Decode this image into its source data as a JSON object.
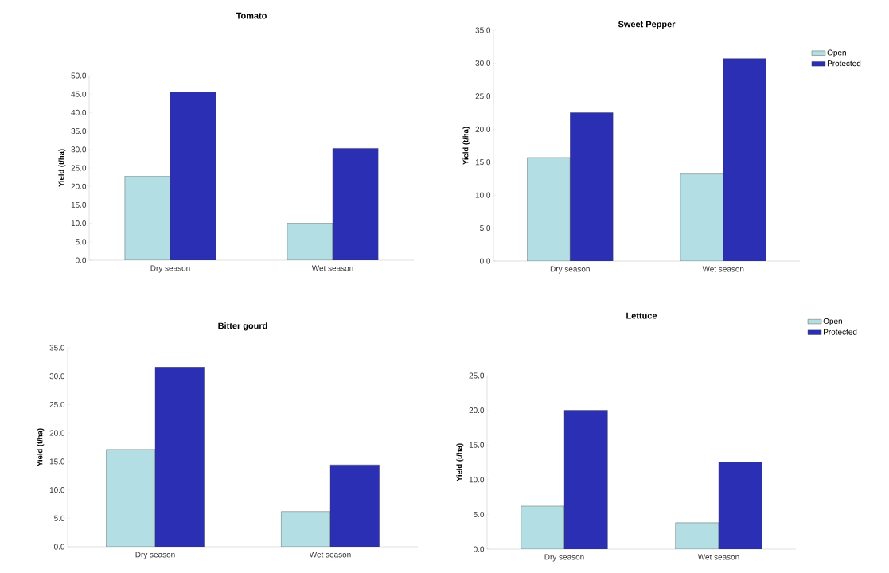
{
  "chart_data": [
    {
      "type": "bar",
      "title": "Tomato",
      "ylabel": "Yield (t/ha)",
      "categories": [
        "Dry season",
        "Wet season"
      ],
      "series": [
        {
          "color": "#b3dfe4",
          "values": [
            22.8,
            10.0
          ]
        },
        {
          "color": "#2b2fb3",
          "values": [
            45.5,
            30.3
          ]
        }
      ],
      "ylim": [
        0,
        50
      ],
      "yticks": [
        {
          "value": 0,
          "label": "0.0"
        },
        {
          "value": 5,
          "label": "5.0"
        },
        {
          "value": 10,
          "label": "10.0"
        },
        {
          "value": 15,
          "label": "15.0"
        },
        {
          "value": 20,
          "label": "20.0"
        },
        {
          "value": 25,
          "label": "25.0"
        },
        {
          "value": 30,
          "label": "30.0"
        },
        {
          "value": 35,
          "label": "35.0"
        },
        {
          "value": 40,
          "label": "40.0"
        },
        {
          "value": 45,
          "label": "45.0"
        },
        {
          "value": 50,
          "label": "50.0"
        }
      ]
    },
    {
      "type": "bar",
      "title": "Sweet Pepper",
      "ylabel": "Yield (t/ha)",
      "categories": [
        "Dry season",
        "Wet season"
      ],
      "series": [
        {
          "name": "Open",
          "color": "#b3dfe4",
          "values": [
            15.7,
            13.2
          ]
        },
        {
          "name": "Protected",
          "color": "#2b2fb3",
          "values": [
            22.5,
            30.7
          ]
        }
      ],
      "ylim": [
        0,
        35
      ],
      "yticks": [
        {
          "value": 0,
          "label": "0.0"
        },
        {
          "value": 5,
          "label": "5.0"
        },
        {
          "value": 10,
          "label": "10.0"
        },
        {
          "value": 15,
          "label": "15.0"
        },
        {
          "value": 20,
          "label": "20.0"
        },
        {
          "value": 25,
          "label": "25.0"
        },
        {
          "value": 30,
          "label": "30.0"
        },
        {
          "value": 35,
          "label": "35.0"
        }
      ],
      "legend": "right"
    },
    {
      "type": "bar",
      "title": "Bitter gourd",
      "ylabel": "Yield (t/ha)",
      "categories": [
        "Dry season",
        "Wet season"
      ],
      "series": [
        {
          "color": "#b3dfe4",
          "values": [
            17.1,
            6.2
          ]
        },
        {
          "color": "#2b2fb3",
          "values": [
            31.6,
            14.4
          ]
        }
      ],
      "ylim": [
        0,
        35
      ],
      "yticks": [
        {
          "value": 0,
          "label": "0.0"
        },
        {
          "value": 5,
          "label": "5.0"
        },
        {
          "value": 10,
          "label": "10.0"
        },
        {
          "value": 15,
          "label": "15.0"
        },
        {
          "value": 20,
          "label": "20.0"
        },
        {
          "value": 25,
          "label": "25.0"
        },
        {
          "value": 30,
          "label": "30.0"
        },
        {
          "value": 35,
          "label": "35.0"
        }
      ]
    },
    {
      "type": "bar",
      "title": "Lettuce",
      "ylabel": "Yield (t/ha)",
      "categories": [
        "Dry season",
        "Wet season"
      ],
      "series": [
        {
          "name": "Open",
          "color": "#b3dfe4",
          "values": [
            6.2,
            3.8
          ]
        },
        {
          "name": "Protected",
          "color": "#2b2fb3",
          "values": [
            20.0,
            12.5
          ]
        }
      ],
      "ylim": [
        0,
        25
      ],
      "yticks": [
        {
          "value": 0,
          "label": "0.0"
        },
        {
          "value": 5,
          "label": "5.0"
        },
        {
          "value": 10,
          "label": "10.0"
        },
        {
          "value": 15,
          "label": "15.0"
        },
        {
          "value": 20,
          "label": "20.0"
        },
        {
          "value": 25,
          "label": "25.0"
        }
      ],
      "legend": "top right"
    }
  ]
}
